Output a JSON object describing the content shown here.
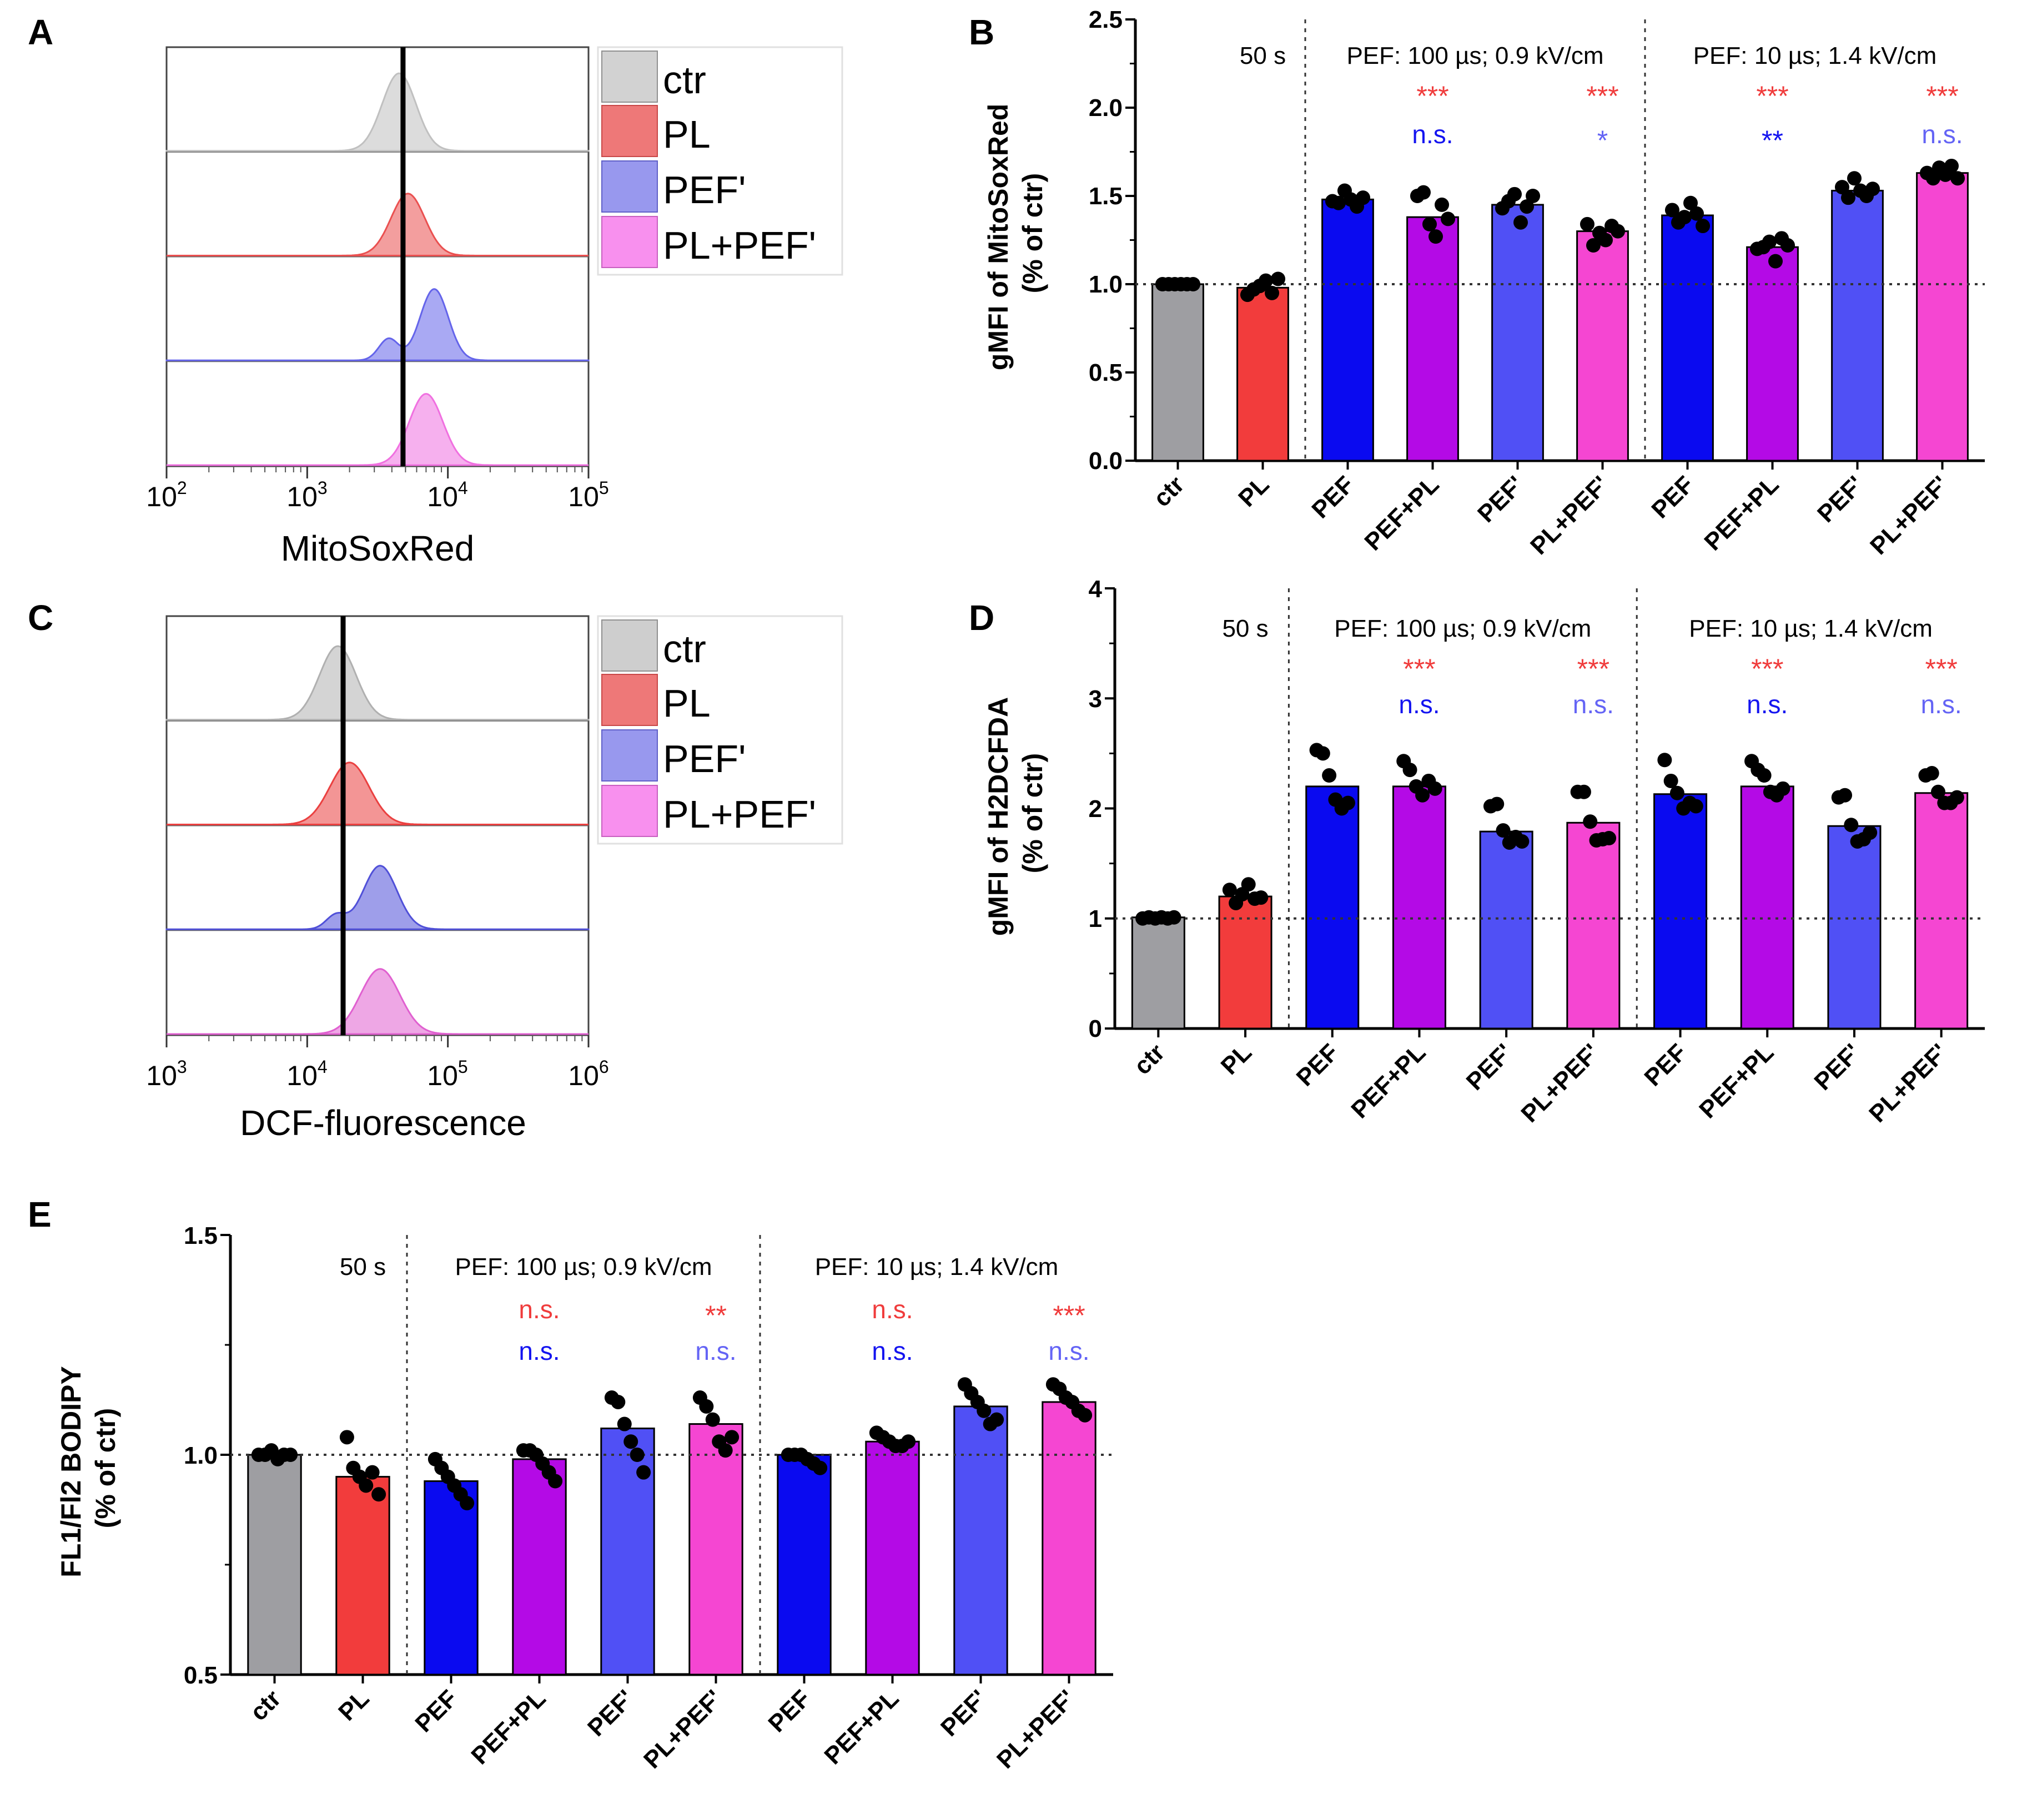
{
  "panels": {
    "A": {
      "letter": "A",
      "xlabel": "MitoSoxRed",
      "tick_labels": [
        {
          "base": "10",
          "exp": "2"
        },
        {
          "base": "10",
          "exp": "3"
        },
        {
          "base": "10",
          "exp": "4"
        },
        {
          "base": "10",
          "exp": "5"
        }
      ],
      "legend": [
        "ctr",
        "PL",
        "PEF'",
        "PL+PEF'"
      ]
    },
    "C": {
      "letter": "C",
      "xlabel": "DCF-fluorescence",
      "tick_labels": [
        {
          "base": "10",
          "exp": "3"
        },
        {
          "base": "10",
          "exp": "4"
        },
        {
          "base": "10",
          "exp": "5"
        },
        {
          "base": "10",
          "exp": "6"
        }
      ],
      "legend": [
        "ctr",
        "PL",
        "PEF'",
        "PL+PEF'"
      ]
    },
    "B": {
      "letter": "B",
      "ylabel_line1": "gMFI of MitoSoxRed",
      "ylabel_line2": "(% of ctr)",
      "ytick_labels": [
        "0.0",
        "0.5",
        "1.0",
        "1.5",
        "2.0",
        "2.5"
      ]
    },
    "D": {
      "letter": "D",
      "ylabel_line1": "gMFI of H2DCFDA",
      "ylabel_line2": "(% of ctr)",
      "ytick_labels": [
        "0",
        "1",
        "2",
        "3",
        "4"
      ]
    },
    "E": {
      "letter": "E",
      "ylabel_line1": "FL1/Fl2 BODIPY",
      "ylabel_line2": "(% of ctr)",
      "ytick_labels": [
        "0.5",
        "1.0",
        "1.5"
      ]
    }
  },
  "chart_data": [
    {
      "id": "A",
      "type": "histogram-overlay",
      "xlabel": "MitoSoxRed",
      "x_scale": "log",
      "xlim": [
        100,
        100000
      ],
      "reference_line": 4800,
      "series": [
        {
          "name": "ctr",
          "color": "#c0c0c0",
          "components": [
            {
              "peak": 4500,
              "sigma": 0.12,
              "amp": 1.0
            }
          ]
        },
        {
          "name": "PL",
          "color": "#ea5050",
          "components": [
            {
              "peak": 5200,
              "sigma": 0.12,
              "amp": 0.8
            }
          ]
        },
        {
          "name": "PEF'",
          "color": "#6464ea",
          "components": [
            {
              "peak": 8000,
              "sigma": 0.1,
              "amp": 0.92
            },
            {
              "peak": 3800,
              "sigma": 0.07,
              "amp": 0.28
            }
          ]
        },
        {
          "name": "PL+PEF'",
          "color": "#f070e0",
          "components": [
            {
              "peak": 7000,
              "sigma": 0.12,
              "amp": 0.92
            }
          ]
        }
      ]
    },
    {
      "id": "C",
      "type": "histogram-overlay",
      "xlabel": "DCF-fluorescence",
      "x_scale": "log",
      "xlim": [
        1000,
        1000000
      ],
      "reference_line": 18000,
      "series": [
        {
          "name": "ctr",
          "color": "#b0b0b0",
          "components": [
            {
              "peak": 16500,
              "sigma": 0.13,
              "amp": 0.95
            }
          ]
        },
        {
          "name": "PL",
          "color": "#ea4040",
          "components": [
            {
              "peak": 20000,
              "sigma": 0.14,
              "amp": 0.8
            }
          ]
        },
        {
          "name": "PEF'",
          "color": "#5050d8",
          "components": [
            {
              "peak": 33000,
              "sigma": 0.12,
              "amp": 0.82
            },
            {
              "peak": 16000,
              "sigma": 0.07,
              "amp": 0.18
            }
          ]
        },
        {
          "name": "PL+PEF'",
          "color": "#e060d0",
          "components": [
            {
              "peak": 33000,
              "sigma": 0.14,
              "amp": 0.84
            }
          ]
        }
      ]
    },
    {
      "id": "B",
      "type": "bar",
      "ylabel": "gMFI of MitoSoxRed (% of ctr)",
      "ylim": [
        0,
        2.5
      ],
      "yticks": [
        0,
        0.5,
        1.0,
        1.5,
        2.0,
        2.5
      ],
      "reference_y": 1.0,
      "categories": [
        "ctr",
        "PL",
        "PEF",
        "PEF+PL",
        "PEF'",
        "PL+PEF'",
        "PEF",
        "PEF+PL",
        "PEF'",
        "PL+PEF'"
      ],
      "values": [
        1.0,
        0.98,
        1.48,
        1.38,
        1.45,
        1.3,
        1.39,
        1.21,
        1.53,
        1.63
      ],
      "colors": [
        "#9e9ea2",
        "#f23c3c",
        "#0a0af0",
        "#b40ae6",
        "#5050f5",
        "#f546d2",
        "#0a0af0",
        "#b40ae6",
        "#5050f5",
        "#f546d2"
      ],
      "points": [
        [
          1.0,
          1.0,
          1.0,
          1.0,
          1.0,
          1.0
        ],
        [
          0.94,
          0.97,
          0.99,
          1.02,
          0.95,
          1.03
        ],
        [
          1.47,
          1.46,
          1.53,
          1.48,
          1.44,
          1.49
        ],
        [
          1.5,
          1.52,
          1.34,
          1.27,
          1.45,
          1.37
        ],
        [
          1.43,
          1.47,
          1.51,
          1.35,
          1.44,
          1.5
        ],
        [
          1.34,
          1.22,
          1.29,
          1.25,
          1.33,
          1.3
        ],
        [
          1.42,
          1.35,
          1.38,
          1.46,
          1.4,
          1.33
        ],
        [
          1.2,
          1.21,
          1.24,
          1.13,
          1.26,
          1.22
        ],
        [
          1.55,
          1.49,
          1.6,
          1.53,
          1.5,
          1.54
        ],
        [
          1.63,
          1.6,
          1.66,
          1.62,
          1.67,
          1.6
        ]
      ],
      "separators_after": [
        1,
        5
      ],
      "section_labels": [
        {
          "text": "50 s",
          "between": [
            1,
            1
          ]
        },
        {
          "text": "PEF:  100 µs;  0.9 kV/cm",
          "between": [
            2,
            5
          ]
        },
        {
          "text": "PEF:  10 µs;  1.4 kV/cm",
          "between": [
            6,
            9
          ]
        }
      ],
      "annotations": [
        {
          "index": 3,
          "row": 1,
          "text": "***",
          "color": "#f03c3c"
        },
        {
          "index": 3,
          "row": 2,
          "text": "n.s.",
          "color": "#1414f0"
        },
        {
          "index": 5,
          "row": 1,
          "text": "***",
          "color": "#f03c3c"
        },
        {
          "index": 5,
          "row": 2,
          "text": "*",
          "color": "#6464f5"
        },
        {
          "index": 7,
          "row": 1,
          "text": "***",
          "color": "#f03c3c"
        },
        {
          "index": 7,
          "row": 2,
          "text": "**",
          "color": "#1414f0"
        },
        {
          "index": 9,
          "row": 1,
          "text": "***",
          "color": "#f03c3c"
        },
        {
          "index": 9,
          "row": 2,
          "text": "n.s.",
          "color": "#6464f5"
        }
      ]
    },
    {
      "id": "D",
      "type": "bar",
      "ylabel": "gMFI of H2DCFDA (% of ctr)",
      "ylim": [
        0,
        4
      ],
      "yticks": [
        0,
        1,
        2,
        3,
        4
      ],
      "reference_y": 1.0,
      "categories": [
        "ctr",
        "PL",
        "PEF",
        "PEF+PL",
        "PEF'",
        "PL+PEF'",
        "PEF",
        "PEF+PL",
        "PEF'",
        "PL+PEF'"
      ],
      "values": [
        1.01,
        1.2,
        2.2,
        2.2,
        1.79,
        1.87,
        2.13,
        2.2,
        1.84,
        2.14
      ],
      "colors": [
        "#9e9ea2",
        "#f23c3c",
        "#0a0af0",
        "#b40ae6",
        "#5050f5",
        "#f546d2",
        "#0a0af0",
        "#b40ae6",
        "#5050f5",
        "#f546d2"
      ],
      "points": [
        [
          1.0,
          1.01,
          1.0,
          1.01,
          1.0,
          1.01
        ],
        [
          1.26,
          1.14,
          1.22,
          1.31,
          1.18,
          1.19
        ],
        [
          2.53,
          2.5,
          2.3,
          2.08,
          2.0,
          2.05
        ],
        [
          2.43,
          2.35,
          2.2,
          2.12,
          2.25,
          2.18
        ],
        [
          2.02,
          2.04,
          1.8,
          1.69,
          1.74,
          1.7
        ],
        [
          2.15,
          2.15,
          1.88,
          1.71,
          1.72,
          1.73
        ],
        [
          2.44,
          2.25,
          2.14,
          2.0,
          2.05,
          2.02
        ],
        [
          2.43,
          2.35,
          2.3,
          2.15,
          2.12,
          2.18
        ],
        [
          2.1,
          2.12,
          1.85,
          1.7,
          1.72,
          1.78
        ],
        [
          2.3,
          2.32,
          2.15,
          2.05,
          2.05,
          2.1
        ]
      ],
      "separators_after": [
        1,
        5
      ],
      "section_labels": [
        {
          "text": "50 s",
          "between": [
            1,
            1
          ]
        },
        {
          "text": "PEF:  100 µs;  0.9 kV/cm",
          "between": [
            2,
            5
          ]
        },
        {
          "text": "PEF:  10 µs;  1.4 kV/cm",
          "between": [
            6,
            9
          ]
        }
      ],
      "annotations": [
        {
          "index": 3,
          "row": 1,
          "text": "***",
          "color": "#f03c3c"
        },
        {
          "index": 3,
          "row": 2,
          "text": "n.s.",
          "color": "#1414f0"
        },
        {
          "index": 5,
          "row": 1,
          "text": "***",
          "color": "#f03c3c"
        },
        {
          "index": 5,
          "row": 2,
          "text": "n.s.",
          "color": "#6464f5"
        },
        {
          "index": 7,
          "row": 1,
          "text": "***",
          "color": "#f03c3c"
        },
        {
          "index": 7,
          "row": 2,
          "text": "n.s.",
          "color": "#1414f0"
        },
        {
          "index": 9,
          "row": 1,
          "text": "***",
          "color": "#f03c3c"
        },
        {
          "index": 9,
          "row": 2,
          "text": "n.s.",
          "color": "#6464f5"
        }
      ]
    },
    {
      "id": "E",
      "type": "bar",
      "ylabel": "FL1/Fl2 BODIPY (% of ctr)",
      "ylim": [
        0.5,
        1.5
      ],
      "yticks": [
        0.5,
        1.0,
        1.5
      ],
      "reference_y": 1.0,
      "categories": [
        "ctr",
        "PL",
        "PEF",
        "PEF+PL",
        "PEF'",
        "PL+PEF'",
        "PEF",
        "PEF+PL",
        "PEF'",
        "PL+PEF'"
      ],
      "values": [
        1.0,
        0.95,
        0.94,
        0.99,
        1.06,
        1.07,
        1.0,
        1.03,
        1.11,
        1.12
      ],
      "colors": [
        "#9e9ea2",
        "#f23c3c",
        "#0a0af0",
        "#b40ae6",
        "#5050f5",
        "#f546d2",
        "#0a0af0",
        "#b40ae6",
        "#5050f5",
        "#f546d2"
      ],
      "points": [
        [
          1.0,
          1.0,
          1.01,
          0.99,
          1.0,
          1.0
        ],
        [
          1.04,
          0.97,
          0.95,
          0.93,
          0.96,
          0.91
        ],
        [
          0.99,
          0.97,
          0.95,
          0.93,
          0.91,
          0.89
        ],
        [
          1.01,
          1.01,
          1.0,
          0.98,
          0.96,
          0.94
        ],
        [
          1.13,
          1.12,
          1.07,
          1.03,
          1.0,
          0.96
        ],
        [
          1.13,
          1.11,
          1.08,
          1.03,
          1.01,
          1.04
        ],
        [
          1.0,
          1.0,
          1.0,
          0.99,
          0.98,
          0.97
        ],
        [
          1.05,
          1.04,
          1.03,
          1.02,
          1.02,
          1.03
        ],
        [
          1.16,
          1.14,
          1.12,
          1.1,
          1.07,
          1.08
        ],
        [
          1.16,
          1.15,
          1.13,
          1.12,
          1.1,
          1.09
        ]
      ],
      "separators_after": [
        1,
        5
      ],
      "section_labels": [
        {
          "text": "50 s",
          "between": [
            1,
            1
          ]
        },
        {
          "text": "PEF:  100 µs;  0.9 kV/cm",
          "between": [
            2,
            5
          ]
        },
        {
          "text": "PEF:  10 µs;  1.4 kV/cm",
          "between": [
            6,
            9
          ]
        }
      ],
      "annotations": [
        {
          "index": 3,
          "row": 1,
          "text": "n.s.",
          "color": "#f03c3c"
        },
        {
          "index": 3,
          "row": 2,
          "text": "n.s.",
          "color": "#1414f0"
        },
        {
          "index": 5,
          "row": 1,
          "text": "**",
          "color": "#f03c3c"
        },
        {
          "index": 5,
          "row": 2,
          "text": "n.s.",
          "color": "#6464f5"
        },
        {
          "index": 7,
          "row": 1,
          "text": "n.s.",
          "color": "#f03c3c"
        },
        {
          "index": 7,
          "row": 2,
          "text": "n.s.",
          "color": "#1414f0"
        },
        {
          "index": 9,
          "row": 1,
          "text": "***",
          "color": "#f03c3c"
        },
        {
          "index": 9,
          "row": 2,
          "text": "n.s.",
          "color": "#6464f5"
        }
      ]
    }
  ]
}
